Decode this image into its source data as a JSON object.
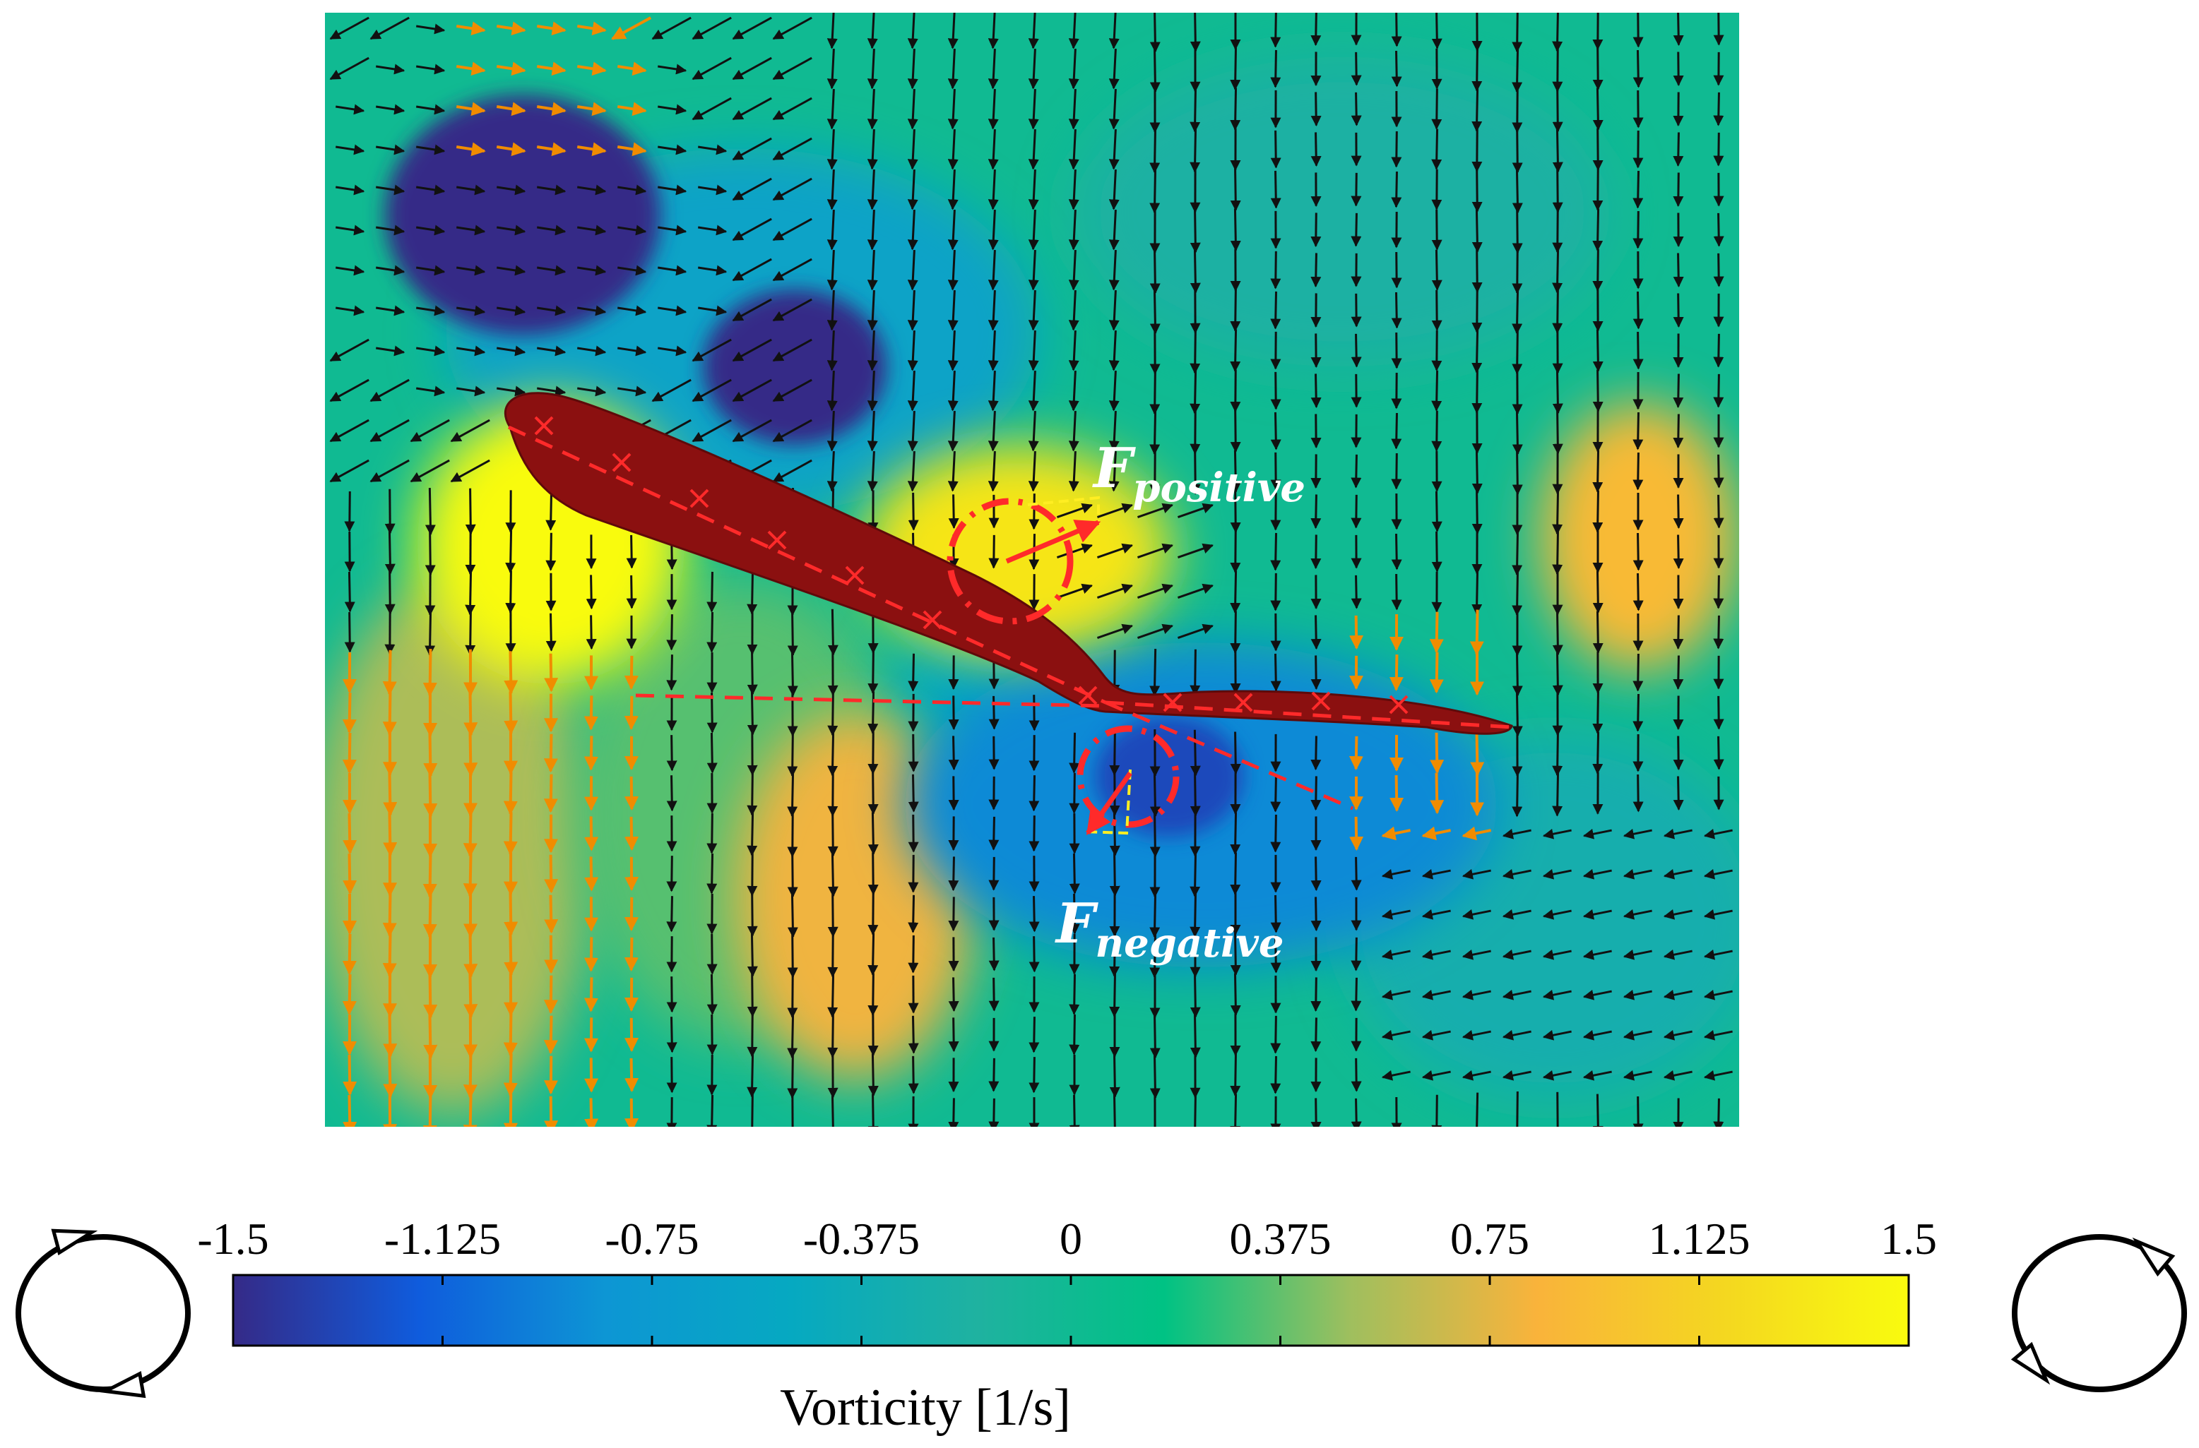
{
  "colors": {
    "scale": [
      "#352a87",
      "#0f5cdd",
      "#0d96d4",
      "#06a9c1",
      "#1fb2a0",
      "#00c284",
      "#9fbf5e",
      "#f9b33b",
      "#f4d720",
      "#f9fb0e"
    ],
    "wing": "#8b1010",
    "black_arrow": "#111111",
    "orange_arrow": "#f08c00",
    "marker_red": "#ff2a2a",
    "guide_yellow": "#ffee22"
  },
  "chart_data": {
    "type": "heatmap",
    "field": "vorticity",
    "colorbar": {
      "title": "Vorticity [1/s]",
      "range": [
        -1.5,
        1.5
      ],
      "ticks": [
        -1.5,
        -1.125,
        -0.75,
        -0.375,
        0,
        0.375,
        0.75,
        1.125,
        1.5
      ],
      "tick_labels": [
        "-1.5",
        "-1.125",
        "-0.75",
        "-0.375",
        "0",
        "0.375",
        "0.75",
        "1.125",
        "1.5"
      ],
      "orientation": "horizontal",
      "location": "bottom"
    },
    "background_vorticity": 0,
    "vortices": [
      {
        "sign": "negative",
        "vorticity": -1.5
      },
      {
        "sign": "negative",
        "vorticity": -1.5
      },
      {
        "sign": "negative",
        "vorticity": -1.3
      },
      {
        "sign": "positive",
        "vorticity": 1.3
      },
      {
        "sign": "positive",
        "vorticity": 1.5
      },
      {
        "sign": "positive",
        "vorticity": 0.9
      },
      {
        "sign": "positive",
        "vorticity": 0.8
      },
      {
        "sign": "negative",
        "vorticity": -0.9
      }
    ],
    "annotations": [
      {
        "label_main": "F",
        "label_sub": "positive"
      },
      {
        "label_main": "F",
        "label_sub": "negative"
      }
    ],
    "rotation_icons": [
      {
        "sense": "clockwise",
        "side": "left"
      },
      {
        "sense": "counterclockwise",
        "side": "right"
      }
    ],
    "velocity_field": "quiver; predominantly downward flow, deflected left above the wing",
    "has_axes": false
  }
}
